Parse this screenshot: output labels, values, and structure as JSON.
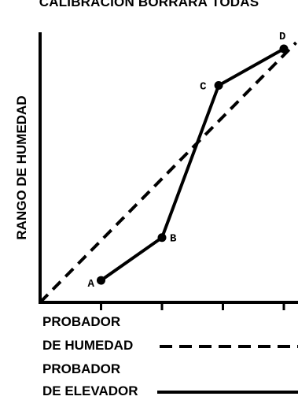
{
  "chart_data": {
    "type": "line",
    "title": "CALIBRACIÓN BORRARÁ TODAS",
    "ylabel": "RANGO DE HUMEDAD",
    "xlabel": "",
    "xlim": [
      0,
      4
    ],
    "ylim": [
      0,
      4
    ],
    "x_ticks": [
      1,
      2,
      3,
      4
    ],
    "series": [
      {
        "name": "PROBADOR DE ELEVADOR",
        "style": "solid",
        "color": "#000000",
        "points": [
          {
            "label": "A",
            "x": 1.0,
            "y": 0.36
          },
          {
            "label": "B",
            "x": 2.0,
            "y": 1.06
          },
          {
            "label": "C",
            "x": 2.93,
            "y": 3.55
          },
          {
            "label": "D",
            "x": 4.0,
            "y": 4.15
          }
        ]
      },
      {
        "name": "PROBADOR DE HUMEDAD",
        "style": "dashed",
        "color": "#000000",
        "points": [
          {
            "x": 0.0,
            "y": 0.0
          },
          {
            "x": 4.2,
            "y": 4.25
          }
        ]
      }
    ],
    "legend": [
      {
        "line1": "PROBADOR",
        "line2": "DE HUMEDAD",
        "style": "dashed"
      },
      {
        "line1": "PROBADOR",
        "line2": "DE ELEVADOR",
        "style": "solid"
      }
    ],
    "legend_placement": "bottom",
    "grid": false
  }
}
